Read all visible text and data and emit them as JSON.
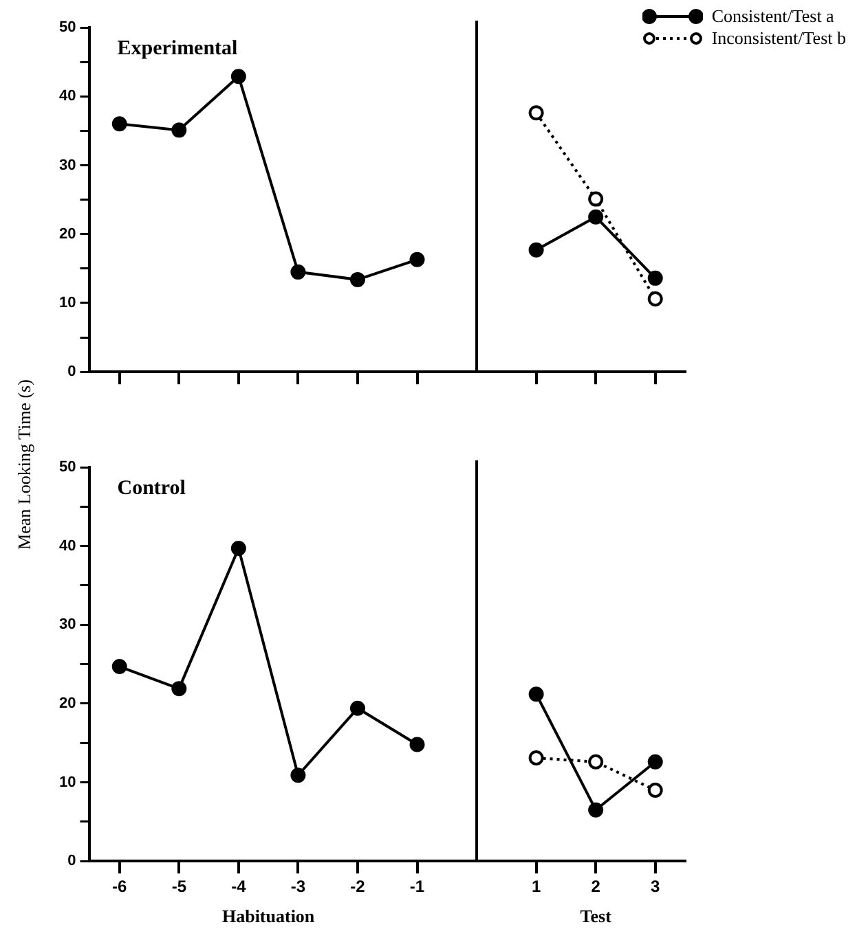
{
  "chart_data": [
    {
      "type": "line",
      "title": "Experimental",
      "ylabel": "Mean Looking Time (s)",
      "series": [
        {
          "color": "#000000",
          "line_style": "solid",
          "x": [
            -6,
            -5,
            -4,
            -3,
            -2,
            -1
          ],
          "values": [
            36.0,
            35.1,
            42.9,
            14.5,
            13.4,
            16.3
          ]
        },
        {
          "name": "Consistent/Test a",
          "color": "#000000",
          "line_style": "solid",
          "x": [
            1,
            2,
            3
          ],
          "values": [
            17.7,
            22.5,
            13.6
          ]
        },
        {
          "name": "Inconsistent/Test b",
          "color": "#000000",
          "line_style": "dotted",
          "x": [
            1,
            2,
            3
          ],
          "values": [
            37.6,
            25.1,
            10.6
          ]
        }
      ],
      "xlim": [
        -6.5,
        3.5
      ],
      "xticks": [
        -6,
        -5,
        -4,
        -3,
        -2,
        -1,
        1,
        2,
        3
      ],
      "ylim": [
        0,
        50
      ],
      "yticks": [
        0,
        {
          "value": 5,
          "label": null
        },
        10,
        {
          "value": 15,
          "label": null
        },
        20,
        {
          "value": 25,
          "label": null
        },
        30,
        {
          "value": 35,
          "label": null
        },
        40,
        {
          "value": 45,
          "label": null
        },
        50
      ],
      "ref_lines": [
        {
          "axis": "x",
          "value": 0,
          "color": "#000000"
        }
      ],
      "tick_labels": "y",
      "grid": false,
      "legend": "top right",
      "marker": "circle"
    },
    {
      "type": "line",
      "title": "Control",
      "xlabel": "Habituation",
      "annotations": [
        "Test"
      ],
      "series": [
        {
          "color": "#000000",
          "line_style": "solid",
          "x": [
            -6,
            -5,
            -4,
            -3,
            -2,
            -1
          ],
          "values": [
            24.7,
            21.9,
            39.7,
            10.9,
            19.4,
            14.8
          ]
        },
        {
          "color": "#000000",
          "line_style": "solid",
          "x": [
            1,
            2,
            3
          ],
          "values": [
            21.2,
            6.5,
            12.6
          ]
        },
        {
          "color": "#000000",
          "line_style": "dotted",
          "x": [
            1,
            2,
            3
          ],
          "values": [
            13.1,
            12.6,
            9.0
          ]
        }
      ],
      "xlim": [
        -6.5,
        3.5
      ],
      "xticks": [
        -6,
        -5,
        -4,
        -3,
        -2,
        -1,
        1,
        2,
        3
      ],
      "ylim": [
        0,
        50
      ],
      "yticks": [
        0,
        {
          "value": 5,
          "label": null
        },
        10,
        {
          "value": 15,
          "label": null
        },
        20,
        {
          "value": 25,
          "label": null
        },
        30,
        {
          "value": 35,
          "label": null
        },
        40,
        {
          "value": 45,
          "label": null
        },
        50
      ],
      "ref_lines": [
        {
          "axis": "x",
          "value": 0,
          "color": "#000000"
        }
      ],
      "grid": false,
      "legend": false,
      "marker": "circle"
    }
  ]
}
